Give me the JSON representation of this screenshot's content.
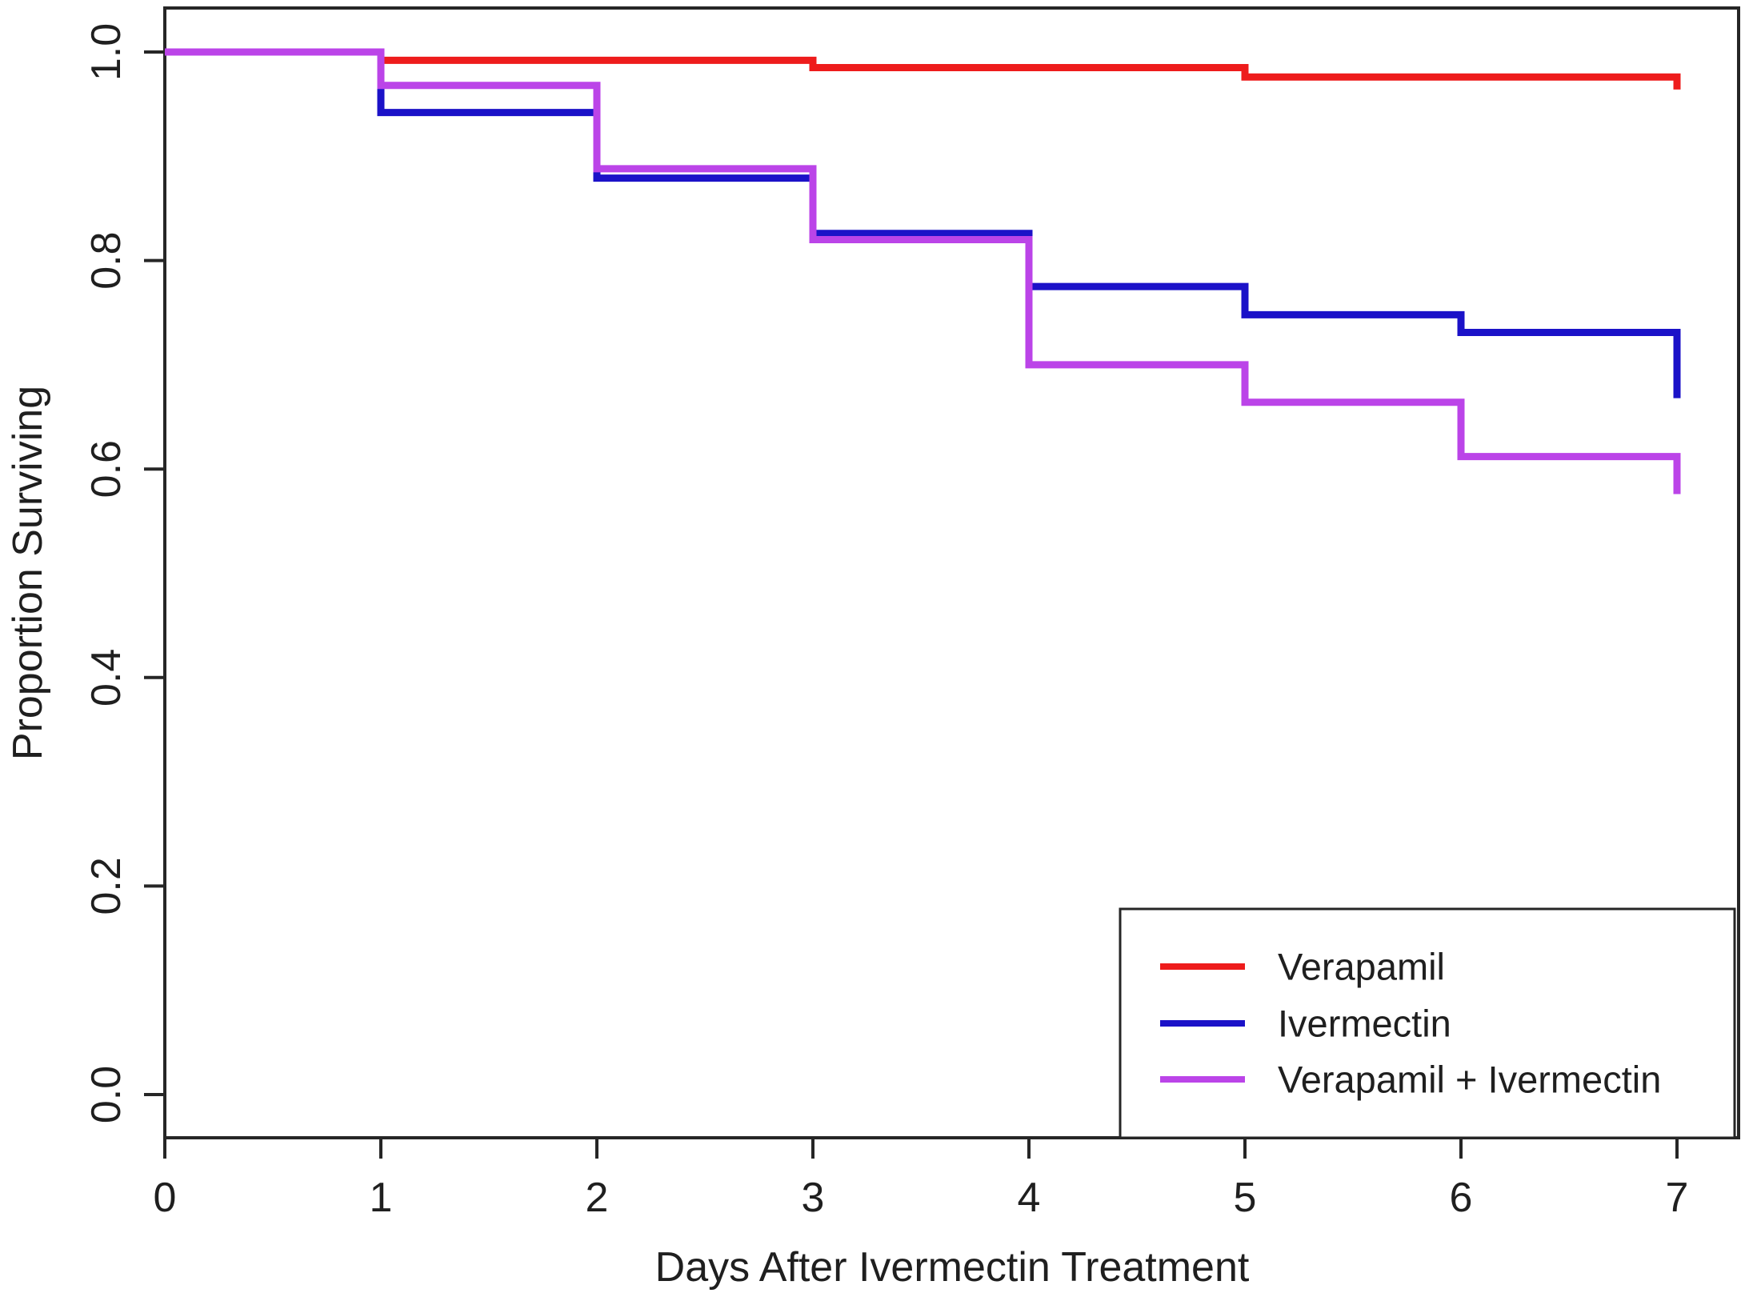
{
  "figure": {
    "background": "#ffffff",
    "axis_color": "#262626",
    "text_color": "#1f1f1f"
  },
  "chart_data": {
    "type": "line",
    "subtype": "kaplan-meier-step",
    "title": "",
    "xlabel": "Days After Ivermectin Treatment",
    "ylabel": "Proportion Surviving",
    "xlim": [
      0,
      7.3
    ],
    "ylim": [
      -0.04,
      1.04
    ],
    "x_ticks": [
      0,
      1,
      2,
      3,
      4,
      5,
      6,
      7
    ],
    "y_tick_labels": [
      "0.0",
      "0.2",
      "0.4",
      "0.6",
      "0.8",
      "1.0"
    ],
    "grid": false,
    "legend_position": "bottom-right",
    "legend_entries": [
      "Verapamil",
      "Ivermectin",
      "Verapamil + Ivermectin"
    ],
    "series": [
      {
        "name": "Verapamil",
        "color": "#EE1C1C",
        "days": [
          0,
          1,
          2,
          3,
          4,
          5,
          6,
          7
        ],
        "survival": [
          1.0,
          0.992,
          0.992,
          0.985,
          0.985,
          0.976,
          0.976,
          0.964
        ]
      },
      {
        "name": "Ivermectin",
        "color": "#1B12C8",
        "days": [
          0,
          1,
          2,
          3,
          4,
          5,
          6,
          7
        ],
        "survival": [
          1.0,
          0.942,
          0.879,
          0.826,
          0.775,
          0.748,
          0.731,
          0.668
        ]
      },
      {
        "name": "Verapamil + Ivermectin",
        "color": "#BB44E8",
        "days": [
          0,
          1,
          2,
          3,
          4,
          5,
          6,
          7
        ],
        "survival": [
          1.0,
          0.968,
          0.888,
          0.82,
          0.7,
          0.664,
          0.612,
          0.576
        ]
      }
    ]
  }
}
